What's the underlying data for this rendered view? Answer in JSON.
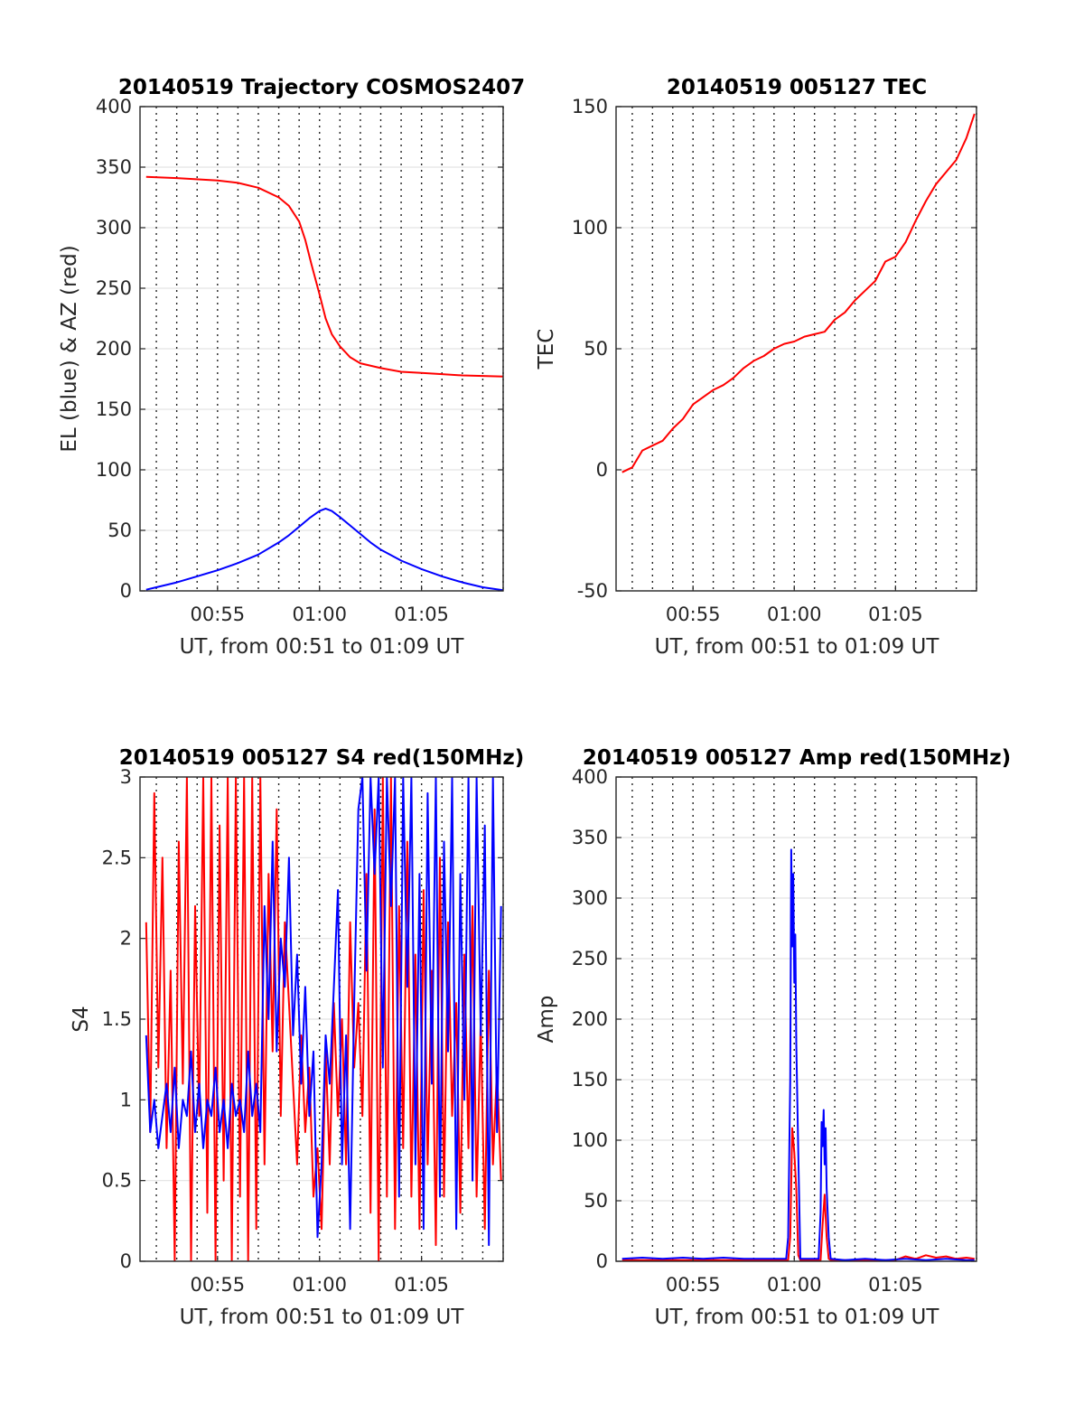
{
  "figure_date": "20140519",
  "chart_data": [
    {
      "id": "trajectory",
      "type": "line",
      "title": "20140519 Trajectory COSMOS2407",
      "xlabel": "UT, from 00:51 to 01:09 UT",
      "ylabel": "EL (blue) & AZ (red)",
      "xlim": [
        51.2,
        69.0
      ],
      "ylim": [
        0,
        400
      ],
      "xticks": [
        55,
        60,
        65
      ],
      "xtick_labels": [
        "00:55",
        "01:00",
        "01:05"
      ],
      "yticks": [
        0,
        50,
        100,
        150,
        200,
        250,
        300,
        350,
        400
      ],
      "ytick_labels": [
        "0",
        "50",
        "100",
        "150",
        "200",
        "250",
        "300",
        "350",
        "400"
      ],
      "grid": true,
      "series": [
        {
          "color": "#ff0000",
          "x": [
            51.5,
            53,
            55,
            56,
            57,
            58,
            58.5,
            59,
            59.3,
            59.6,
            60,
            60.3,
            60.6,
            61,
            61.5,
            62,
            63,
            64,
            65,
            66,
            67,
            68,
            69
          ],
          "y": [
            342,
            341,
            339,
            337,
            333,
            325,
            318,
            305,
            290,
            270,
            245,
            225,
            212,
            202,
            193,
            188,
            184,
            181,
            180,
            179,
            178,
            177.5,
            177
          ]
        },
        {
          "color": "#0000ff",
          "x": [
            51.5,
            52,
            53,
            54,
            55,
            56,
            57,
            58,
            58.5,
            59,
            59.5,
            60,
            60.3,
            60.6,
            61,
            61.5,
            62,
            62.5,
            63,
            64,
            65,
            66,
            67,
            68,
            69
          ],
          "y": [
            1,
            3,
            7,
            12,
            17,
            23,
            30,
            40,
            46,
            53,
            60,
            66,
            68,
            66,
            61,
            54,
            47,
            40,
            34,
            25,
            18,
            12,
            7,
            3,
            0.5
          ]
        }
      ]
    },
    {
      "id": "tec",
      "type": "line",
      "title": "20140519 005127 TEC",
      "xlabel": "UT, from 00:51 to 01:09 UT",
      "ylabel": "TEC",
      "xlim": [
        51.2,
        69.0
      ],
      "ylim": [
        -50,
        150
      ],
      "xticks": [
        55,
        60,
        65
      ],
      "xtick_labels": [
        "00:55",
        "01:00",
        "01:05"
      ],
      "yticks": [
        -50,
        0,
        50,
        100,
        150
      ],
      "ytick_labels": [
        "-50",
        "0",
        "50",
        "100",
        "150"
      ],
      "grid": true,
      "series": [
        {
          "color": "#ff0000",
          "x": [
            51.5,
            52,
            52.5,
            53,
            53.5,
            54,
            54.5,
            55,
            55.5,
            56,
            56.5,
            57,
            57.5,
            58,
            58.5,
            59,
            59.5,
            60,
            60.5,
            61,
            61.5,
            62,
            62.5,
            63,
            63.5,
            64,
            64.5,
            65,
            65.5,
            66,
            66.5,
            67,
            67.5,
            68,
            68.5,
            68.9
          ],
          "y": [
            -1,
            1,
            8,
            10,
            12,
            17,
            21,
            27,
            30,
            33,
            35,
            38,
            42,
            45,
            47,
            50,
            52,
            53,
            55,
            56,
            57,
            62,
            65,
            70,
            74,
            78,
            86,
            88,
            94,
            103,
            111,
            118,
            123,
            128,
            137,
            147
          ]
        }
      ]
    },
    {
      "id": "s4",
      "type": "line",
      "title": "20140519 005127 S4 red(150MHz)",
      "xlabel": "UT, from 00:51 to 01:09 UT",
      "ylabel": "S4",
      "xlim": [
        51.2,
        69.0
      ],
      "ylim": [
        0,
        3
      ],
      "xticks": [
        55,
        60,
        65
      ],
      "xtick_labels": [
        "00:55",
        "01:00",
        "01:05"
      ],
      "yticks": [
        0,
        0.5,
        1,
        1.5,
        2,
        2.5,
        3
      ],
      "ytick_labels": [
        "0",
        "0.5",
        "1",
        "1.5",
        "2",
        "2.5",
        "3"
      ],
      "grid": true,
      "series": [
        {
          "color": "#ff0000",
          "x": [
            51.5,
            51.7,
            51.9,
            52.1,
            52.3,
            52.5,
            52.7,
            52.9,
            53.1,
            53.3,
            53.5,
            53.7,
            53.9,
            54.1,
            54.3,
            54.5,
            54.7,
            54.9,
            55.1,
            55.3,
            55.5,
            55.7,
            55.9,
            56.1,
            56.3,
            56.5,
            56.7,
            56.9,
            57.1,
            57.3,
            57.5,
            57.7,
            57.9,
            58.1,
            58.3,
            58.5,
            58.7,
            58.9,
            59.1,
            59.3,
            59.5,
            59.7,
            59.9,
            60.1,
            60.3,
            60.5,
            60.7,
            60.9,
            61.1,
            61.3,
            61.5,
            61.7,
            61.9,
            62.1,
            62.3,
            62.5,
            62.7,
            62.9,
            63.1,
            63.3,
            63.5,
            63.7,
            63.9,
            64.1,
            64.3,
            64.5,
            64.7,
            64.9,
            65.1,
            65.3,
            65.5,
            65.7,
            65.9,
            66.1,
            66.3,
            66.5,
            66.7,
            66.9,
            67.1,
            67.3,
            67.5,
            67.7,
            67.9,
            68.1,
            68.3,
            68.5,
            68.7,
            68.9
          ],
          "y": [
            2.1,
            0.8,
            2.9,
            1.2,
            2.5,
            0.7,
            1.8,
            0,
            2.6,
            1.1,
            3,
            0,
            2.2,
            0.9,
            3,
            0.3,
            3,
            0,
            2.7,
            0.5,
            3,
            0,
            3,
            0.4,
            3,
            0,
            3,
            0.2,
            3,
            0.6,
            2.4,
            1.3,
            2.8,
            0.9,
            2.1,
            1.6,
            1.1,
            0.6,
            1.4,
            0.8,
            1.2,
            0.4,
            0.7,
            0.2,
            1.3,
            0.6,
            1.6,
            0.9,
            1.5,
            0.6,
            2.1,
            1.2,
            1.6,
            0.9,
            2.4,
            0.3,
            2.8,
            0,
            3,
            0.4,
            3,
            0.2,
            2.2,
            0.7,
            2.6,
            0.4,
            1.9,
            0.2,
            2.3,
            0.6,
            1.8,
            0.1,
            2.5,
            0.4,
            2.1,
            0.9,
            1.6,
            0.3,
            1.9,
            0.7,
            2.2,
            0.4,
            1.5,
            0.2,
            1.8,
            0.6,
            1.2,
            0.5
          ]
        },
        {
          "color": "#0000ff",
          "x": [
            51.5,
            51.7,
            51.9,
            52.1,
            52.3,
            52.5,
            52.7,
            52.9,
            53.1,
            53.3,
            53.5,
            53.7,
            53.9,
            54.1,
            54.3,
            54.5,
            54.7,
            54.9,
            55.1,
            55.3,
            55.5,
            55.7,
            55.9,
            56.1,
            56.3,
            56.5,
            56.7,
            56.9,
            57.1,
            57.3,
            57.5,
            57.7,
            57.9,
            58.1,
            58.3,
            58.5,
            58.7,
            58.9,
            59.1,
            59.3,
            59.5,
            59.7,
            59.9,
            60.1,
            60.3,
            60.5,
            60.7,
            60.9,
            61.1,
            61.3,
            61.5,
            61.7,
            61.9,
            62.1,
            62.3,
            62.5,
            62.7,
            62.9,
            63.1,
            63.3,
            63.5,
            63.7,
            63.9,
            64.1,
            64.3,
            64.5,
            64.7,
            64.9,
            65.1,
            65.3,
            65.5,
            65.7,
            65.9,
            66.1,
            66.3,
            66.5,
            66.7,
            66.9,
            67.1,
            67.3,
            67.5,
            67.7,
            67.9,
            68.1,
            68.3,
            68.5,
            68.7,
            68.9
          ],
          "y": [
            1.4,
            0.8,
            1.0,
            0.7,
            0.9,
            1.1,
            0.8,
            1.2,
            0.7,
            1.0,
            0.9,
            1.3,
            0.8,
            1.1,
            0.7,
            1.0,
            0.9,
            1.2,
            0.8,
            1.0,
            0.7,
            1.1,
            0.9,
            1.0,
            0.8,
            1.3,
            0.9,
            1.1,
            0.8,
            2.2,
            1.5,
            2.6,
            1.3,
            2.0,
            1.7,
            2.5,
            1.4,
            1.9,
            1.1,
            1.7,
            0.9,
            1.3,
            0.15,
            0.6,
            1.4,
            1.1,
            1.7,
            2.3,
            0.6,
            1.4,
            0.2,
            1.6,
            2.8,
            3,
            1.8,
            3,
            2.4,
            3,
            1.2,
            3,
            2.2,
            3,
            0.4,
            3,
            1.7,
            3,
            0.6,
            2.4,
            0.2,
            2.9,
            1.1,
            3,
            0.4,
            2.6,
            1.3,
            3,
            0.2,
            2.4,
            1.0,
            3,
            0.5,
            3,
            1.4,
            2.7,
            0.1,
            3,
            0.8,
            2.2
          ]
        }
      ]
    },
    {
      "id": "amp",
      "type": "line",
      "title": "20140519 005127 Amp red(150MHz)",
      "xlabel": "UT, from 00:51 to 01:09 UT",
      "ylabel": "Amp",
      "xlim": [
        51.2,
        69.0
      ],
      "ylim": [
        0,
        400
      ],
      "xticks": [
        55,
        60,
        65
      ],
      "xtick_labels": [
        "00:55",
        "01:00",
        "01:05"
      ],
      "yticks": [
        0,
        50,
        100,
        150,
        200,
        250,
        300,
        350,
        400
      ],
      "ytick_labels": [
        "0",
        "50",
        "100",
        "150",
        "200",
        "250",
        "300",
        "350",
        "400"
      ],
      "grid": true,
      "series": [
        {
          "color": "#ff0000",
          "x": [
            51.5,
            59.7,
            59.8,
            59.9,
            60.0,
            60.1,
            60.2,
            60.3,
            61.3,
            61.4,
            61.5,
            61.6,
            61.7,
            61.8,
            65.0,
            65.5,
            66.0,
            66.5,
            67.0,
            67.5,
            68.0,
            68.5,
            68.9
          ],
          "y": [
            1,
            1,
            20,
            110,
            90,
            60,
            5,
            1,
            1,
            30,
            55,
            20,
            2,
            1,
            1,
            4,
            2,
            5,
            3,
            4,
            2,
            3,
            2
          ]
        },
        {
          "color": "#0000ff",
          "x": [
            51.5,
            52.5,
            53.5,
            54.5,
            55.5,
            56.5,
            57.5,
            58.5,
            59.6,
            59.7,
            59.8,
            59.85,
            59.9,
            59.95,
            60.0,
            60.05,
            60.1,
            60.2,
            60.3,
            61.2,
            61.3,
            61.35,
            61.4,
            61.45,
            61.5,
            61.55,
            61.6,
            61.7,
            61.8,
            62.5,
            63.5,
            64.5,
            65.5,
            66.5,
            67.5,
            68.5,
            68.9
          ],
          "y": [
            2,
            3,
            2,
            3,
            2,
            3,
            2,
            2,
            2,
            20,
            150,
            340,
            260,
            320,
            230,
            270,
            180,
            90,
            2,
            2,
            40,
            115,
            95,
            125,
            80,
            110,
            60,
            20,
            2,
            1,
            2,
            1,
            2,
            1,
            2,
            1,
            1
          ]
        }
      ]
    }
  ]
}
